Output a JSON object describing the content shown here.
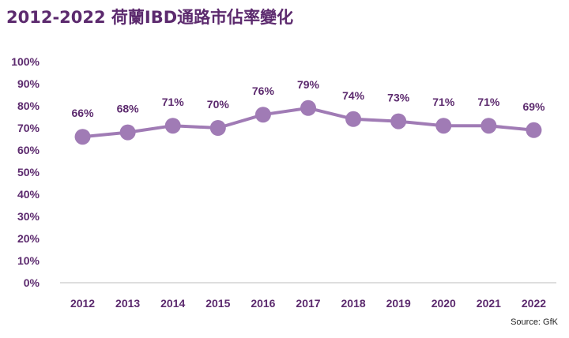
{
  "chart_data": {
    "type": "line",
    "title": "2012-2022 荷蘭IBD通路市佔率變化",
    "source": "Source: GfK",
    "categories": [
      "2012",
      "2013",
      "2014",
      "2015",
      "2016",
      "2017",
      "2018",
      "2019",
      "2020",
      "2021",
      "2022"
    ],
    "values": [
      66,
      68,
      71,
      70,
      76,
      79,
      74,
      73,
      71,
      71,
      69
    ],
    "data_labels": [
      "66%",
      "68%",
      "71%",
      "70%",
      "76%",
      "79%",
      "74%",
      "73%",
      "71%",
      "71%",
      "69%"
    ],
    "ylim": [
      0,
      100
    ],
    "yticks": [
      "0%",
      "10%",
      "20%",
      "30%",
      "40%",
      "50%",
      "60%",
      "70%",
      "80%",
      "90%",
      "100%"
    ],
    "grid": false,
    "colors": {
      "line": "#a07bb5",
      "text": "#5c2a6e",
      "axis": "#bdbdbd"
    }
  }
}
